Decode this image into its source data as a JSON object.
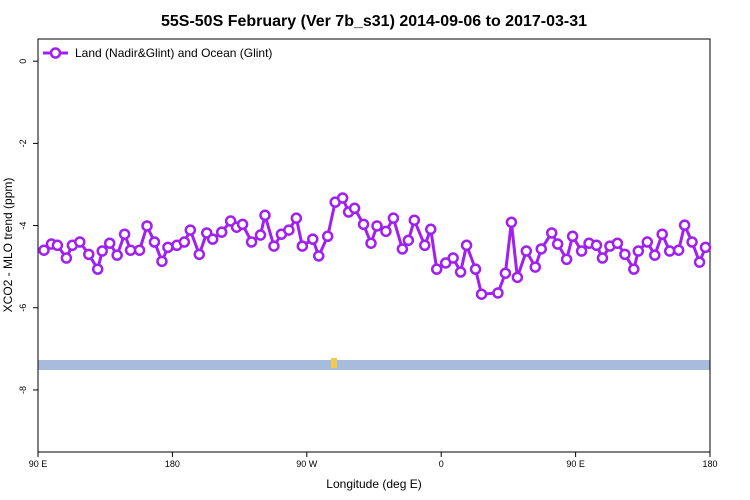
{
  "chart_data": {
    "type": "line",
    "title": "55S-50S February (Ver 7b_s31)   2014-09-06 to 2017-03-31",
    "xlabel": "Longitude (deg E)",
    "ylabel": "XCO2 - MLO trend (ppm)",
    "xlim": [
      90,
      540
    ],
    "ylim": [
      -9.51,
      0.54
    ],
    "xticks": [
      {
        "value": 90,
        "label": "90 E"
      },
      {
        "value": 180,
        "label": "180"
      },
      {
        "value": 270,
        "label": "90 W"
      },
      {
        "value": 360,
        "label": "0"
      },
      {
        "value": 450,
        "label": "90 E"
      },
      {
        "value": 540,
        "label": "180"
      }
    ],
    "yticks": [
      0,
      -2,
      -4,
      -6,
      -8
    ],
    "legend": "top-left",
    "x": [
      94,
      99,
      103,
      109,
      113,
      118,
      124,
      130,
      133,
      138,
      143,
      148,
      152,
      158,
      163,
      168,
      173,
      177,
      183,
      188,
      192,
      198,
      203,
      207,
      213,
      219,
      223,
      227,
      233,
      239,
      242,
      248,
      253,
      258,
      263,
      267,
      274,
      278,
      284,
      289,
      294,
      298,
      302,
      308,
      313,
      317,
      323,
      328,
      334,
      338,
      342,
      349,
      353,
      357,
      363,
      368,
      373,
      377,
      383,
      387,
      398,
      403,
      407,
      411,
      417,
      423,
      427,
      434,
      438,
      444,
      448,
      454,
      459,
      464,
      468,
      473,
      478,
      483,
      489,
      492,
      498,
      503,
      508,
      513,
      519,
      523,
      528,
      533,
      537
    ],
    "series": [
      {
        "name": "Land (Nadir&Glint) and Ocean (Glint)",
        "color": "#a020f0",
        "values": [
          -4.6,
          -4.45,
          -4.48,
          -4.79,
          -4.48,
          -4.4,
          -4.7,
          -5.06,
          -4.62,
          -4.43,
          -4.72,
          -4.21,
          -4.6,
          -4.6,
          -4.01,
          -4.4,
          -4.87,
          -4.53,
          -4.48,
          -4.4,
          -4.11,
          -4.7,
          -4.18,
          -4.33,
          -4.16,
          -3.89,
          -4.04,
          -3.97,
          -4.4,
          -4.23,
          -3.75,
          -4.5,
          -4.21,
          -4.11,
          -3.82,
          -4.5,
          -4.33,
          -4.74,
          -4.26,
          -3.43,
          -3.33,
          -3.67,
          -3.58,
          -3.97,
          -4.43,
          -4.01,
          -4.14,
          -3.82,
          -4.57,
          -4.36,
          -3.87,
          -4.48,
          -4.09,
          -5.06,
          -4.91,
          -4.79,
          -5.13,
          -4.48,
          -5.06,
          -5.67,
          -5.64,
          -5.16,
          -3.92,
          -5.26,
          -4.62,
          -5.01,
          -4.57,
          -4.18,
          -4.45,
          -4.82,
          -4.26,
          -4.62,
          -4.43,
          -4.48,
          -4.79,
          -4.5,
          -4.43,
          -4.7,
          -5.06,
          -4.62,
          -4.4,
          -4.72,
          -4.21,
          -4.62,
          -4.6,
          -3.99,
          -4.4,
          -4.89,
          -4.53
        ]
      }
    ]
  }
}
